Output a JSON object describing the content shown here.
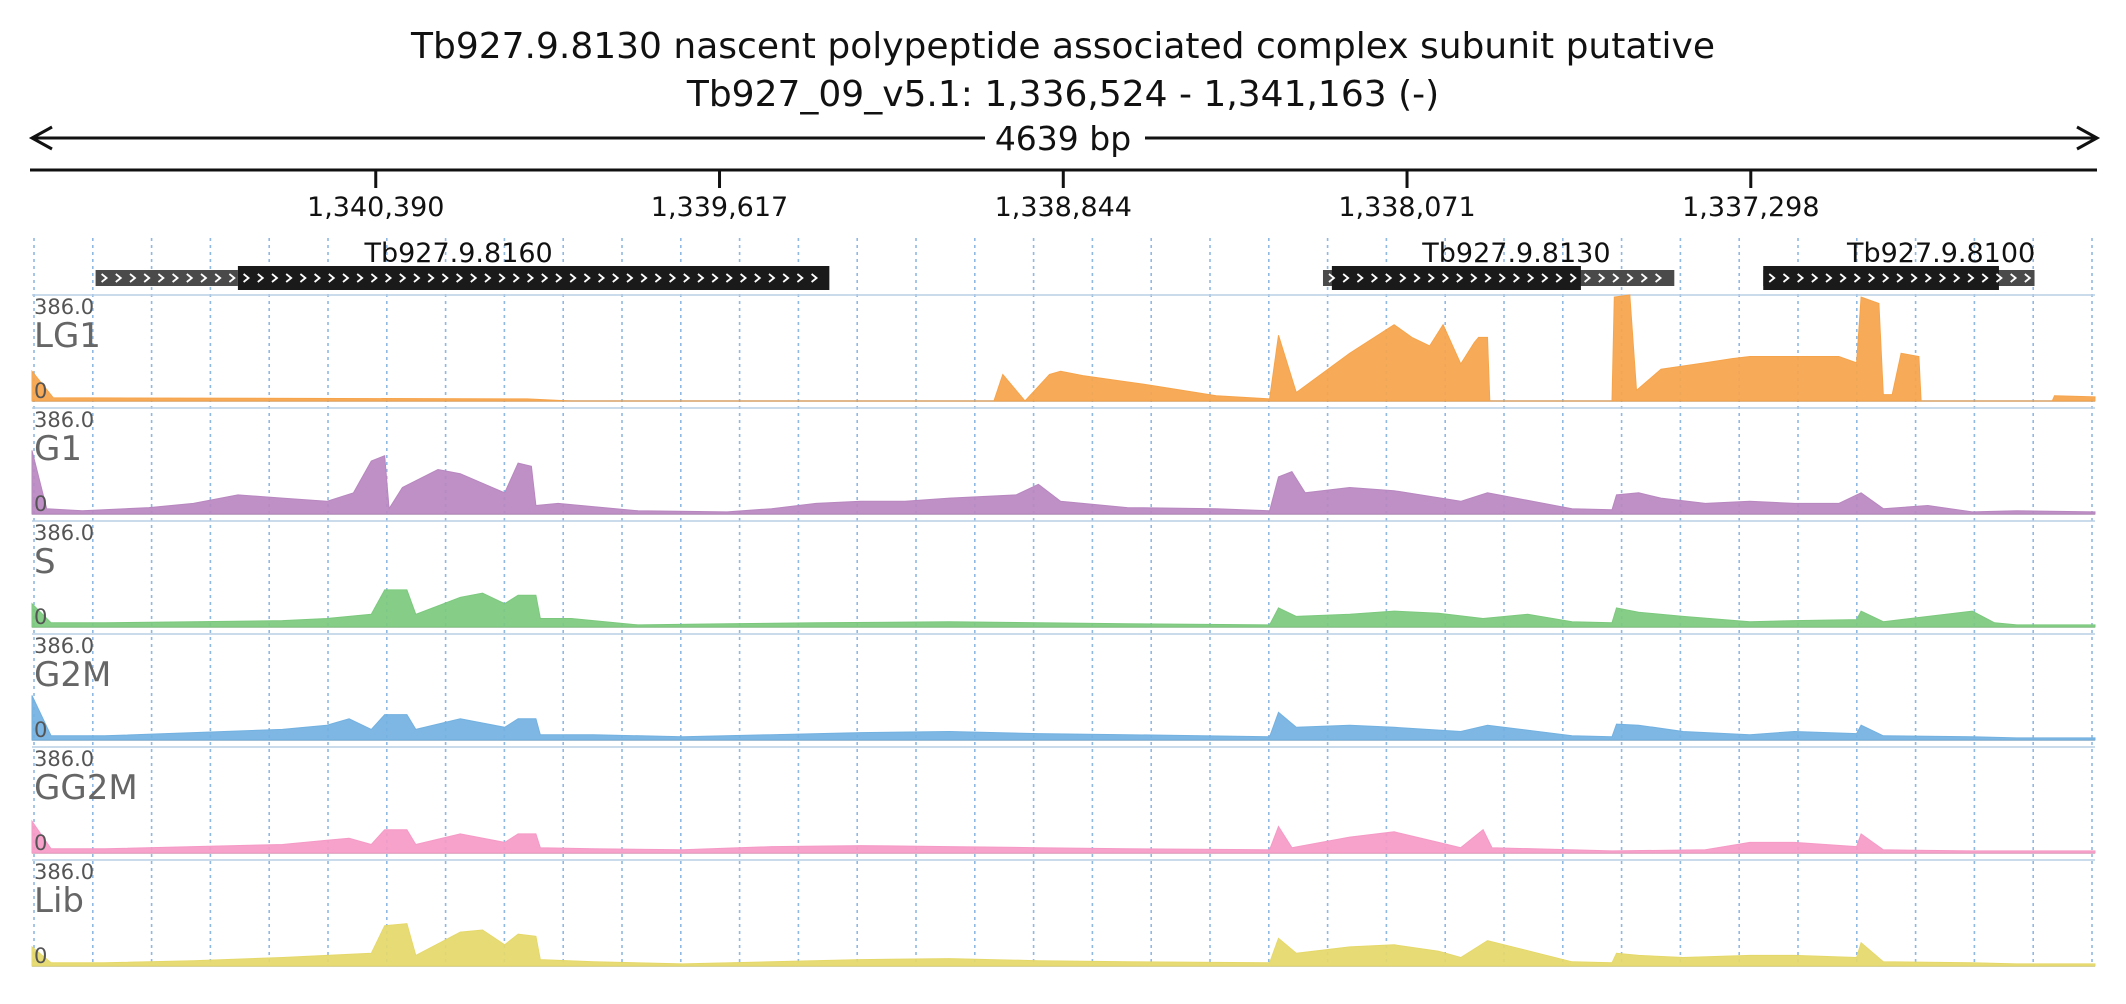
{
  "chart_data": {
    "type": "area",
    "title": "Tb927.9.8130  nascent polypeptide associated complex subunit  putative",
    "subtitle": "Tb927_09_v5.1: 1,336,524 - 1,341,163 (-)",
    "span_label": "4639 bp",
    "x_range": [
      1341163,
      1336524
    ],
    "x_ticks": [
      {
        "value": 1340390,
        "label": "1,340,390"
      },
      {
        "value": 1339617,
        "label": "1,339,617"
      },
      {
        "value": 1338844,
        "label": "1,338,844"
      },
      {
        "value": 1338071,
        "label": "1,338,071"
      },
      {
        "value": 1337298,
        "label": "1,337,298"
      }
    ],
    "genes": [
      {
        "name": "Tb927.9.8160",
        "utr": [
          1341020,
          1340700
        ],
        "cds": [
          1340700,
          1339370
        ]
      },
      {
        "name": "Tb927.9.8130",
        "utr": [
          1338260,
          1337470
        ],
        "cds": [
          1338240,
          1337680
        ]
      },
      {
        "name": "Tb927.9.8100",
        "utr": [
          1337270,
          1336660
        ],
        "cds": [
          1337270,
          1336740
        ]
      }
    ],
    "grid": true,
    "series": [
      {
        "name": "LG1",
        "color": "#F6A44B",
        "ymax": "386.0",
        "ymin": "0",
        "values": [
          [
            1341163,
            0.28
          ],
          [
            1341115,
            0.03
          ],
          [
            1340050,
            0.02
          ],
          [
            1339950,
            0
          ],
          [
            1339000,
            0
          ],
          [
            1338980,
            0.25
          ],
          [
            1338930,
            0
          ],
          [
            1338875,
            0.25
          ],
          [
            1338850,
            0.28
          ],
          [
            1338800,
            0.24
          ],
          [
            1338650,
            0.15
          ],
          [
            1338500,
            0.05
          ],
          [
            1338380,
            0.02
          ],
          [
            1338360,
            0.62
          ],
          [
            1338320,
            0.08
          ],
          [
            1338200,
            0.45
          ],
          [
            1338100,
            0.72
          ],
          [
            1338060,
            0.6
          ],
          [
            1338020,
            0.52
          ],
          [
            1337990,
            0.72
          ],
          [
            1337950,
            0.35
          ],
          [
            1337920,
            0.55
          ],
          [
            1337910,
            0.6
          ],
          [
            1337890,
            0.6
          ],
          [
            1337885,
            0
          ],
          [
            1337610,
            0
          ],
          [
            1337605,
            0.98
          ],
          [
            1337570,
            1.0
          ],
          [
            1337555,
            0.1
          ],
          [
            1337500,
            0.3
          ],
          [
            1337400,
            0.36
          ],
          [
            1337340,
            0.4
          ],
          [
            1337300,
            0.42
          ],
          [
            1337200,
            0.42
          ],
          [
            1337100,
            0.42
          ],
          [
            1337060,
            0.36
          ],
          [
            1337050,
            0.98
          ],
          [
            1337010,
            0.92
          ],
          [
            1337000,
            0.06
          ],
          [
            1336980,
            0.06
          ],
          [
            1336960,
            0.45
          ],
          [
            1336920,
            0.42
          ],
          [
            1336915,
            0
          ],
          [
            1336620,
            0
          ],
          [
            1336615,
            0.05
          ],
          [
            1336524,
            0.04
          ]
        ]
      },
      {
        "name": "G1",
        "color": "#B887C0",
        "ymax": "386.0",
        "ymin": "0",
        "values": [
          [
            1341163,
            0.6
          ],
          [
            1341130,
            0.05
          ],
          [
            1341050,
            0.03
          ],
          [
            1340900,
            0.06
          ],
          [
            1340800,
            0.1
          ],
          [
            1340700,
            0.18
          ],
          [
            1340600,
            0.15
          ],
          [
            1340500,
            0.12
          ],
          [
            1340440,
            0.2
          ],
          [
            1340400,
            0.5
          ],
          [
            1340370,
            0.55
          ],
          [
            1340360,
            0.05
          ],
          [
            1340330,
            0.25
          ],
          [
            1340250,
            0.42
          ],
          [
            1340200,
            0.38
          ],
          [
            1340100,
            0.2
          ],
          [
            1340070,
            0.48
          ],
          [
            1340040,
            0.45
          ],
          [
            1340030,
            0.08
          ],
          [
            1339980,
            0.1
          ],
          [
            1339800,
            0.03
          ],
          [
            1339600,
            0.02
          ],
          [
            1339500,
            0.05
          ],
          [
            1339400,
            0.1
          ],
          [
            1339300,
            0.12
          ],
          [
            1339200,
            0.12
          ],
          [
            1339100,
            0.15
          ],
          [
            1338950,
            0.18
          ],
          [
            1338900,
            0.28
          ],
          [
            1338850,
            0.12
          ],
          [
            1338700,
            0.06
          ],
          [
            1338500,
            0.05
          ],
          [
            1338380,
            0.03
          ],
          [
            1338360,
            0.35
          ],
          [
            1338330,
            0.4
          ],
          [
            1338300,
            0.2
          ],
          [
            1338200,
            0.25
          ],
          [
            1338100,
            0.22
          ],
          [
            1337950,
            0.12
          ],
          [
            1337890,
            0.2
          ],
          [
            1337700,
            0.05
          ],
          [
            1337610,
            0.04
          ],
          [
            1337600,
            0.18
          ],
          [
            1337550,
            0.2
          ],
          [
            1337500,
            0.15
          ],
          [
            1337400,
            0.1
          ],
          [
            1337300,
            0.12
          ],
          [
            1337200,
            0.1
          ],
          [
            1337100,
            0.1
          ],
          [
            1337060,
            0.18
          ],
          [
            1337050,
            0.2
          ],
          [
            1337000,
            0.05
          ],
          [
            1336900,
            0.08
          ],
          [
            1336800,
            0.02
          ],
          [
            1336700,
            0.03
          ],
          [
            1336524,
            0.02
          ]
        ]
      },
      {
        "name": "S",
        "color": "#7CC97E",
        "ymax": "386.0",
        "ymin": "0",
        "values": [
          [
            1341163,
            0.22
          ],
          [
            1341120,
            0.04
          ],
          [
            1341000,
            0.04
          ],
          [
            1340800,
            0.05
          ],
          [
            1340600,
            0.06
          ],
          [
            1340500,
            0.08
          ],
          [
            1340400,
            0.12
          ],
          [
            1340370,
            0.35
          ],
          [
            1340320,
            0.35
          ],
          [
            1340300,
            0.12
          ],
          [
            1340200,
            0.28
          ],
          [
            1340150,
            0.32
          ],
          [
            1340100,
            0.22
          ],
          [
            1340070,
            0.3
          ],
          [
            1340030,
            0.3
          ],
          [
            1340020,
            0.08
          ],
          [
            1339950,
            0.08
          ],
          [
            1339800,
            0.02
          ],
          [
            1339600,
            0.03
          ],
          [
            1339400,
            0.04
          ],
          [
            1339100,
            0.05
          ],
          [
            1338900,
            0.04
          ],
          [
            1338700,
            0.03
          ],
          [
            1338380,
            0.02
          ],
          [
            1338360,
            0.18
          ],
          [
            1338320,
            0.1
          ],
          [
            1338200,
            0.12
          ],
          [
            1338100,
            0.15
          ],
          [
            1338000,
            0.13
          ],
          [
            1337900,
            0.08
          ],
          [
            1337800,
            0.12
          ],
          [
            1337700,
            0.05
          ],
          [
            1337610,
            0.04
          ],
          [
            1337600,
            0.18
          ],
          [
            1337550,
            0.14
          ],
          [
            1337450,
            0.1
          ],
          [
            1337300,
            0.05
          ],
          [
            1337200,
            0.06
          ],
          [
            1337060,
            0.07
          ],
          [
            1337050,
            0.15
          ],
          [
            1337000,
            0.05
          ],
          [
            1336800,
            0.15
          ],
          [
            1336750,
            0.04
          ],
          [
            1336700,
            0.02
          ],
          [
            1336524,
            0.02
          ]
        ]
      },
      {
        "name": "G2M",
        "color": "#73B1E1",
        "ymax": "386.0",
        "ymin": "0",
        "values": [
          [
            1341163,
            0.42
          ],
          [
            1341120,
            0.04
          ],
          [
            1341000,
            0.04
          ],
          [
            1340800,
            0.07
          ],
          [
            1340600,
            0.1
          ],
          [
            1340500,
            0.14
          ],
          [
            1340450,
            0.2
          ],
          [
            1340400,
            0.1
          ],
          [
            1340370,
            0.24
          ],
          [
            1340320,
            0.24
          ],
          [
            1340300,
            0.1
          ],
          [
            1340200,
            0.2
          ],
          [
            1340100,
            0.12
          ],
          [
            1340070,
            0.2
          ],
          [
            1340030,
            0.2
          ],
          [
            1340020,
            0.05
          ],
          [
            1339900,
            0.05
          ],
          [
            1339700,
            0.03
          ],
          [
            1339500,
            0.05
          ],
          [
            1339300,
            0.07
          ],
          [
            1339100,
            0.08
          ],
          [
            1338900,
            0.06
          ],
          [
            1338700,
            0.05
          ],
          [
            1338380,
            0.03
          ],
          [
            1338360,
            0.26
          ],
          [
            1338320,
            0.12
          ],
          [
            1338200,
            0.14
          ],
          [
            1338100,
            0.12
          ],
          [
            1337950,
            0.08
          ],
          [
            1337890,
            0.14
          ],
          [
            1337700,
            0.04
          ],
          [
            1337610,
            0.03
          ],
          [
            1337600,
            0.15
          ],
          [
            1337550,
            0.14
          ],
          [
            1337450,
            0.08
          ],
          [
            1337300,
            0.05
          ],
          [
            1337200,
            0.08
          ],
          [
            1337060,
            0.06
          ],
          [
            1337050,
            0.14
          ],
          [
            1337000,
            0.04
          ],
          [
            1336800,
            0.03
          ],
          [
            1336700,
            0.02
          ],
          [
            1336524,
            0.02
          ]
        ]
      },
      {
        "name": "GG2M",
        "color": "#F59AC6",
        "ymax": "386.0",
        "ymin": "0",
        "values": [
          [
            1341163,
            0.3
          ],
          [
            1341120,
            0.04
          ],
          [
            1341000,
            0.04
          ],
          [
            1340800,
            0.06
          ],
          [
            1340600,
            0.08
          ],
          [
            1340500,
            0.12
          ],
          [
            1340450,
            0.14
          ],
          [
            1340400,
            0.08
          ],
          [
            1340370,
            0.22
          ],
          [
            1340320,
            0.22
          ],
          [
            1340300,
            0.08
          ],
          [
            1340200,
            0.18
          ],
          [
            1340100,
            0.1
          ],
          [
            1340070,
            0.18
          ],
          [
            1340030,
            0.18
          ],
          [
            1340020,
            0.05
          ],
          [
            1339900,
            0.04
          ],
          [
            1339700,
            0.03
          ],
          [
            1339500,
            0.06
          ],
          [
            1339300,
            0.07
          ],
          [
            1339100,
            0.06
          ],
          [
            1338900,
            0.05
          ],
          [
            1338700,
            0.04
          ],
          [
            1338380,
            0.03
          ],
          [
            1338360,
            0.25
          ],
          [
            1338330,
            0.05
          ],
          [
            1338200,
            0.15
          ],
          [
            1338100,
            0.2
          ],
          [
            1338000,
            0.1
          ],
          [
            1337950,
            0.05
          ],
          [
            1337900,
            0.22
          ],
          [
            1337880,
            0.05
          ],
          [
            1337610,
            0.02
          ],
          [
            1337400,
            0.03
          ],
          [
            1337300,
            0.1
          ],
          [
            1337200,
            0.1
          ],
          [
            1337060,
            0.06
          ],
          [
            1337050,
            0.18
          ],
          [
            1337000,
            0.03
          ],
          [
            1336800,
            0.02
          ],
          [
            1336524,
            0.02
          ]
        ]
      },
      {
        "name": "Lib",
        "color": "#E5D86A",
        "ymax": "386.0",
        "ymin": "0",
        "values": [
          [
            1341163,
            0.18
          ],
          [
            1341120,
            0.03
          ],
          [
            1341000,
            0.03
          ],
          [
            1340800,
            0.05
          ],
          [
            1340600,
            0.08
          ],
          [
            1340500,
            0.1
          ],
          [
            1340400,
            0.12
          ],
          [
            1340370,
            0.38
          ],
          [
            1340320,
            0.4
          ],
          [
            1340300,
            0.1
          ],
          [
            1340200,
            0.32
          ],
          [
            1340150,
            0.34
          ],
          [
            1340100,
            0.2
          ],
          [
            1340070,
            0.3
          ],
          [
            1340030,
            0.28
          ],
          [
            1340020,
            0.06
          ],
          [
            1339900,
            0.04
          ],
          [
            1339700,
            0.02
          ],
          [
            1339500,
            0.04
          ],
          [
            1339300,
            0.06
          ],
          [
            1339100,
            0.07
          ],
          [
            1338900,
            0.05
          ],
          [
            1338700,
            0.04
          ],
          [
            1338380,
            0.03
          ],
          [
            1338360,
            0.26
          ],
          [
            1338320,
            0.12
          ],
          [
            1338200,
            0.18
          ],
          [
            1338100,
            0.2
          ],
          [
            1338000,
            0.14
          ],
          [
            1337950,
            0.08
          ],
          [
            1337890,
            0.24
          ],
          [
            1337700,
            0.04
          ],
          [
            1337610,
            0.03
          ],
          [
            1337600,
            0.12
          ],
          [
            1337550,
            0.1
          ],
          [
            1337450,
            0.08
          ],
          [
            1337300,
            0.1
          ],
          [
            1337200,
            0.1
          ],
          [
            1337060,
            0.08
          ],
          [
            1337050,
            0.22
          ],
          [
            1337000,
            0.04
          ],
          [
            1336800,
            0.03
          ],
          [
            1336700,
            0.02
          ],
          [
            1336524,
            0.02
          ]
        ]
      }
    ]
  }
}
